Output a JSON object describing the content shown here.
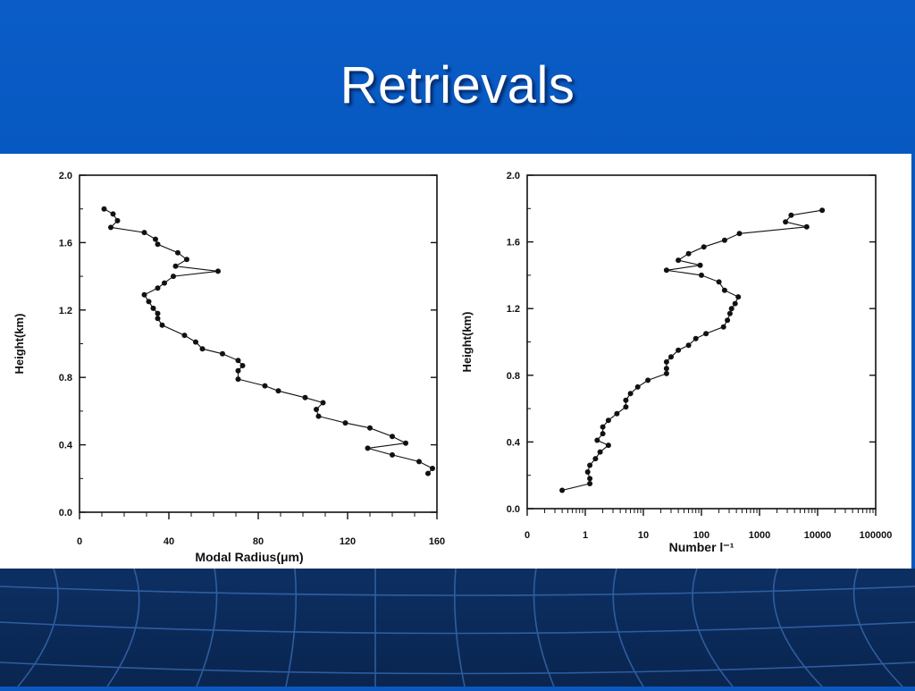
{
  "slide": {
    "title": "Retrievals"
  },
  "colors": {
    "background": "#0a58c0",
    "bottom_band": "#0c2f62",
    "panel": "#ffffff",
    "ink": "#111111"
  },
  "chart_data": [
    {
      "type": "line",
      "xlabel": "Modal Radius(μm)",
      "ylabel": "Height(km)",
      "xlim": [
        0,
        160
      ],
      "ylim": [
        0.0,
        2.0
      ],
      "x_ticks": [
        "0",
        "40",
        "80",
        "120",
        "160"
      ],
      "y_ticks": [
        "0.0",
        "0.4",
        "0.8",
        "1.2",
        "1.6",
        "2.0"
      ],
      "grid": false,
      "series": [
        {
          "points": [
            [
              11,
              1.8
            ],
            [
              15,
              1.77
            ],
            [
              17,
              1.73
            ],
            [
              14,
              1.69
            ],
            [
              29,
              1.66
            ],
            [
              34,
              1.62
            ],
            [
              35,
              1.59
            ],
            [
              44,
              1.54
            ],
            [
              48,
              1.5
            ],
            [
              43,
              1.46
            ],
            [
              62,
              1.43
            ],
            [
              42,
              1.4
            ],
            [
              38,
              1.36
            ],
            [
              35,
              1.33
            ],
            [
              29,
              1.29
            ],
            [
              31,
              1.25
            ],
            [
              33,
              1.21
            ],
            [
              35,
              1.18
            ],
            [
              35,
              1.15
            ],
            [
              37,
              1.11
            ],
            [
              47,
              1.05
            ],
            [
              52,
              1.01
            ],
            [
              55,
              0.97
            ],
            [
              64,
              0.94
            ],
            [
              71,
              0.9
            ],
            [
              73,
              0.87
            ],
            [
              71,
              0.84
            ],
            [
              71,
              0.79
            ],
            [
              83,
              0.75
            ],
            [
              89,
              0.72
            ],
            [
              101,
              0.68
            ],
            [
              109,
              0.65
            ],
            [
              106,
              0.61
            ],
            [
              107,
              0.57
            ],
            [
              119,
              0.53
            ],
            [
              130,
              0.5
            ],
            [
              140,
              0.45
            ],
            [
              146,
              0.41
            ],
            [
              129,
              0.38
            ],
            [
              140,
              0.34
            ],
            [
              152,
              0.3
            ],
            [
              158,
              0.26
            ],
            [
              156,
              0.23
            ]
          ]
        }
      ]
    },
    {
      "type": "line",
      "xlabel": "Number l⁻¹",
      "ylabel": "Height(km)",
      "xscale": "log",
      "xlim": [
        0.1,
        100000
      ],
      "ylim": [
        0.0,
        2.0
      ],
      "x_ticks": [
        "0",
        "1",
        "10",
        "100",
        "1000",
        "10000",
        "100000"
      ],
      "y_ticks": [
        "0.0",
        "0.4",
        "0.8",
        "1.2",
        "1.6",
        "2.0"
      ],
      "grid": false,
      "series": [
        {
          "points": [
            [
              12000,
              1.79
            ],
            [
              3500,
              1.76
            ],
            [
              2800,
              1.72
            ],
            [
              6500,
              1.69
            ],
            [
              450,
              1.65
            ],
            [
              250,
              1.61
            ],
            [
              110,
              1.57
            ],
            [
              60,
              1.53
            ],
            [
              40,
              1.49
            ],
            [
              95,
              1.46
            ],
            [
              25,
              1.43
            ],
            [
              100,
              1.4
            ],
            [
              200,
              1.36
            ],
            [
              250,
              1.31
            ],
            [
              430,
              1.27
            ],
            [
              380,
              1.23
            ],
            [
              330,
              1.2
            ],
            [
              310,
              1.17
            ],
            [
              280,
              1.13
            ],
            [
              240,
              1.09
            ],
            [
              120,
              1.05
            ],
            [
              80,
              1.02
            ],
            [
              60,
              0.98
            ],
            [
              40,
              0.95
            ],
            [
              30,
              0.91
            ],
            [
              25,
              0.88
            ],
            [
              25,
              0.84
            ],
            [
              25,
              0.81
            ],
            [
              12,
              0.77
            ],
            [
              8,
              0.73
            ],
            [
              6,
              0.69
            ],
            [
              5,
              0.65
            ],
            [
              5,
              0.61
            ],
            [
              3.5,
              0.57
            ],
            [
              2.5,
              0.53
            ],
            [
              2,
              0.49
            ],
            [
              2,
              0.45
            ],
            [
              1.6,
              0.41
            ],
            [
              2.5,
              0.38
            ],
            [
              1.8,
              0.34
            ],
            [
              1.5,
              0.3
            ],
            [
              1.2,
              0.26
            ],
            [
              1.1,
              0.22
            ],
            [
              1.2,
              0.18
            ],
            [
              1.2,
              0.15
            ],
            [
              0.4,
              0.11
            ]
          ]
        }
      ]
    }
  ]
}
